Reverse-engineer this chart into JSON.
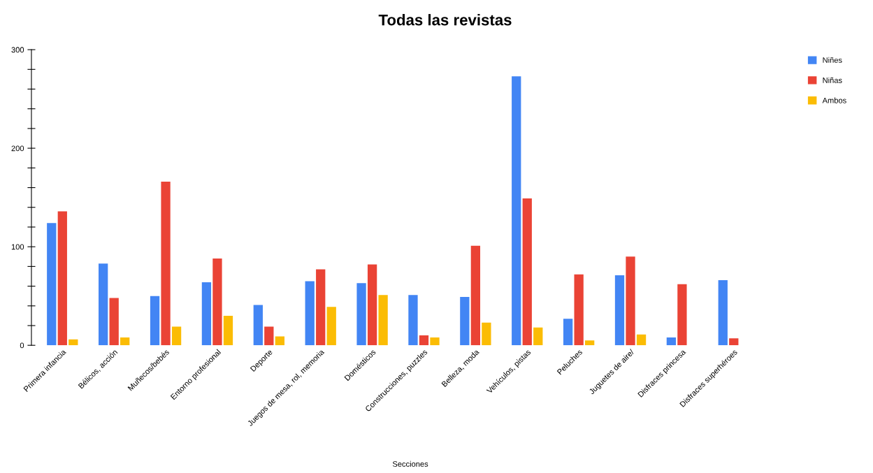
{
  "chart_data": {
    "type": "bar",
    "title": "Todas las revistas",
    "xlabel": "Secciones",
    "categories": [
      "Primera infancia",
      "Bélicos, acción",
      "Muñecos/bebés",
      "Entorno profesional",
      "Deporte",
      "Juegos de mesa, rol, memoria",
      "Domésticos",
      "Construcciones, puzzles",
      "Belleza, moda",
      "Vehículos, pistas",
      "Peluches",
      "Juguetes de aire/",
      "Disfraces princesa",
      "Disfraces superhéroes"
    ],
    "series": [
      {
        "name": "Niñes",
        "color": "#4285f4",
        "values": [
          124,
          83,
          50,
          64,
          41,
          65,
          63,
          51,
          49,
          273,
          27,
          71,
          8,
          66
        ]
      },
      {
        "name": "Niñas",
        "color": "#ea4335",
        "values": [
          136,
          48,
          166,
          88,
          19,
          77,
          82,
          10,
          101,
          149,
          72,
          90,
          62,
          7
        ]
      },
      {
        "name": "Ambos",
        "color": "#fbbc04",
        "values": [
          6,
          8,
          19,
          30,
          9,
          39,
          51,
          8,
          23,
          18,
          5,
          11,
          null,
          null
        ]
      }
    ],
    "ylim": [
      0,
      300
    ],
    "yticks": [
      0,
      {
        "value": 20,
        "label": null
      },
      {
        "value": 40,
        "label": null
      },
      {
        "value": 60,
        "label": null
      },
      {
        "value": 80,
        "label": null
      },
      100,
      {
        "value": 120,
        "label": null
      },
      {
        "value": 140,
        "label": null
      },
      {
        "value": 160,
        "label": null
      },
      {
        "value": 180,
        "label": null
      },
      200,
      {
        "value": 220,
        "label": null
      },
      {
        "value": 240,
        "label": null
      },
      {
        "value": 260,
        "label": null
      },
      {
        "value": 280,
        "label": null
      },
      300
    ],
    "grid": false,
    "legend": "top right"
  }
}
